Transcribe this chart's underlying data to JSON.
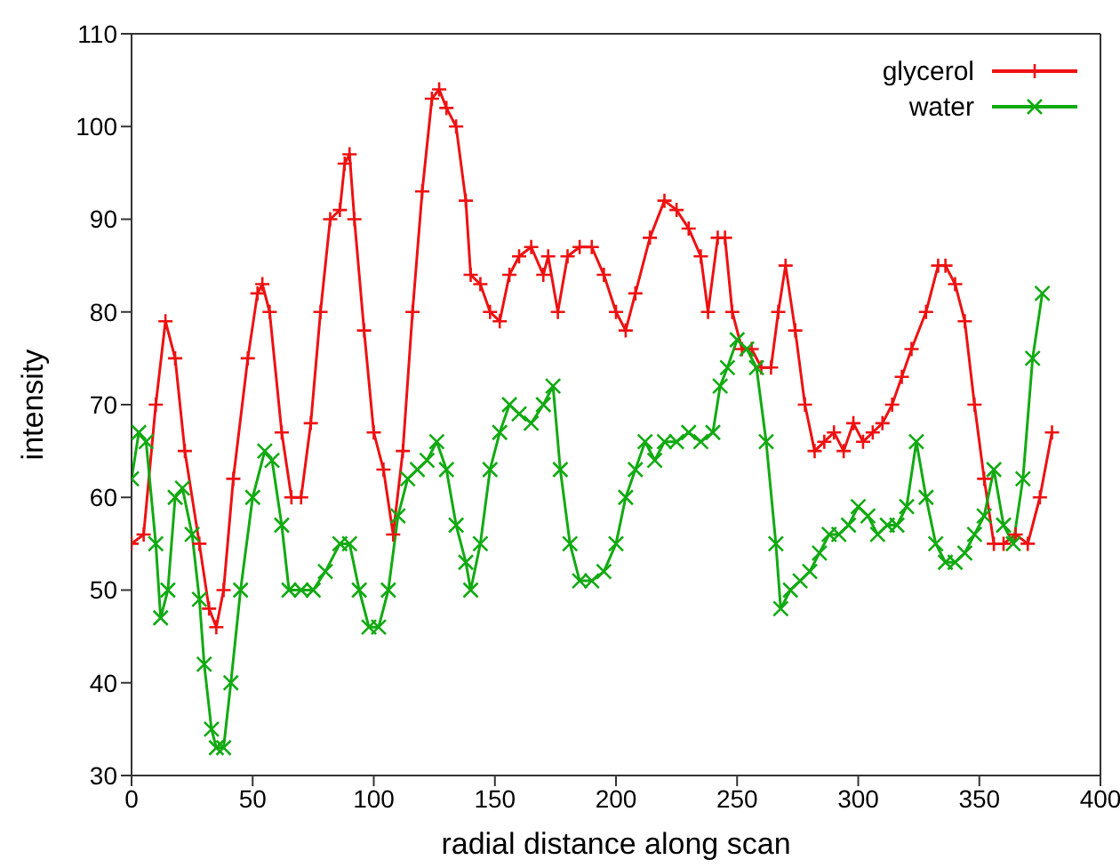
{
  "chart_data": {
    "type": "line",
    "xlabel": "radial distance along scan",
    "ylabel": "intensity",
    "xlim": [
      0,
      400
    ],
    "xticks": [
      0,
      50,
      100,
      150,
      200,
      250,
      300,
      350,
      400
    ],
    "ylim": [
      30,
      110
    ],
    "yticks": [
      30,
      40,
      50,
      60,
      70,
      80,
      90,
      100,
      110
    ],
    "grid": false,
    "legend": "top right",
    "line_style": "solid",
    "marker": "cross",
    "series": [
      {
        "name": "glycerol",
        "color": "#ee1111",
        "x": [
          0,
          5,
          10,
          14,
          18,
          22,
          28,
          32,
          35,
          38,
          42,
          48,
          52,
          54,
          57,
          62,
          66,
          70,
          74,
          78,
          82,
          86,
          88,
          90,
          92,
          96,
          100,
          104,
          108,
          112,
          116,
          120,
          124,
          127,
          130,
          134,
          138,
          140,
          144,
          148,
          152,
          156,
          160,
          165,
          170,
          172,
          176,
          180,
          185,
          190,
          195,
          200,
          204,
          208,
          214,
          220,
          225,
          230,
          235,
          238,
          242,
          245,
          248,
          252,
          256,
          260,
          264,
          267,
          270,
          274,
          278,
          282,
          286,
          290,
          294,
          298,
          302,
          306,
          310,
          314,
          318,
          322,
          328,
          333,
          336,
          340,
          344,
          348,
          352,
          356,
          360,
          365,
          370,
          375,
          380
        ],
        "values": [
          55,
          56,
          70,
          79,
          75,
          65,
          55,
          48,
          46,
          50,
          62,
          75,
          82,
          83,
          80,
          67,
          60,
          60,
          68,
          80,
          90,
          91,
          96,
          97,
          90,
          78,
          67,
          63,
          56,
          65,
          80,
          93,
          103,
          104,
          102,
          100,
          92,
          84,
          83,
          80,
          79,
          84,
          86,
          87,
          84,
          86,
          80,
          86,
          87,
          87,
          84,
          80,
          78,
          82,
          88,
          92,
          91,
          89,
          86,
          80,
          88,
          88,
          80,
          76,
          76,
          74,
          74,
          80,
          85,
          78,
          70,
          65,
          66,
          67,
          65,
          68,
          66,
          67,
          68,
          70,
          73,
          76,
          80,
          85,
          85,
          83,
          79,
          70,
          62,
          55,
          55,
          56,
          55,
          60,
          67
        ]
      },
      {
        "name": "water",
        "color": "#11aa11",
        "x": [
          0,
          3,
          6,
          10,
          12,
          15,
          18,
          21,
          25,
          28,
          30,
          33,
          35,
          38,
          41,
          45,
          50,
          55,
          58,
          62,
          65,
          70,
          75,
          80,
          86,
          90,
          94,
          98,
          102,
          106,
          110,
          114,
          118,
          122,
          126,
          130,
          134,
          138,
          140,
          144,
          148,
          152,
          156,
          160,
          165,
          170,
          174,
          177,
          181,
          185,
          190,
          195,
          200,
          204,
          208,
          212,
          216,
          220,
          225,
          230,
          235,
          240,
          243,
          246,
          250,
          254,
          258,
          262,
          266,
          268,
          272,
          276,
          280,
          284,
          288,
          292,
          296,
          300,
          304,
          308,
          312,
          316,
          320,
          324,
          328,
          332,
          336,
          340,
          344,
          348,
          352,
          356,
          360,
          364,
          368,
          372,
          376
        ],
        "values": [
          62,
          67,
          66,
          55,
          47,
          50,
          60,
          61,
          56,
          49,
          42,
          35,
          33,
          33,
          40,
          50,
          60,
          65,
          64,
          57,
          50,
          50,
          50,
          52,
          55,
          55,
          50,
          46,
          46,
          50,
          58,
          62,
          63,
          64,
          66,
          63,
          57,
          53,
          50,
          55,
          63,
          67,
          70,
          69,
          68,
          70,
          72,
          63,
          55,
          51,
          51,
          52,
          55,
          60,
          63,
          66,
          64,
          66,
          66,
          67,
          66,
          67,
          72,
          74,
          77,
          76,
          74,
          66,
          55,
          48,
          50,
          51,
          52,
          54,
          56,
          56,
          57,
          59,
          58,
          56,
          57,
          57,
          59,
          66,
          60,
          55,
          53,
          53,
          54,
          56,
          58,
          63,
          57,
          55,
          62,
          75,
          82
        ]
      }
    ]
  }
}
